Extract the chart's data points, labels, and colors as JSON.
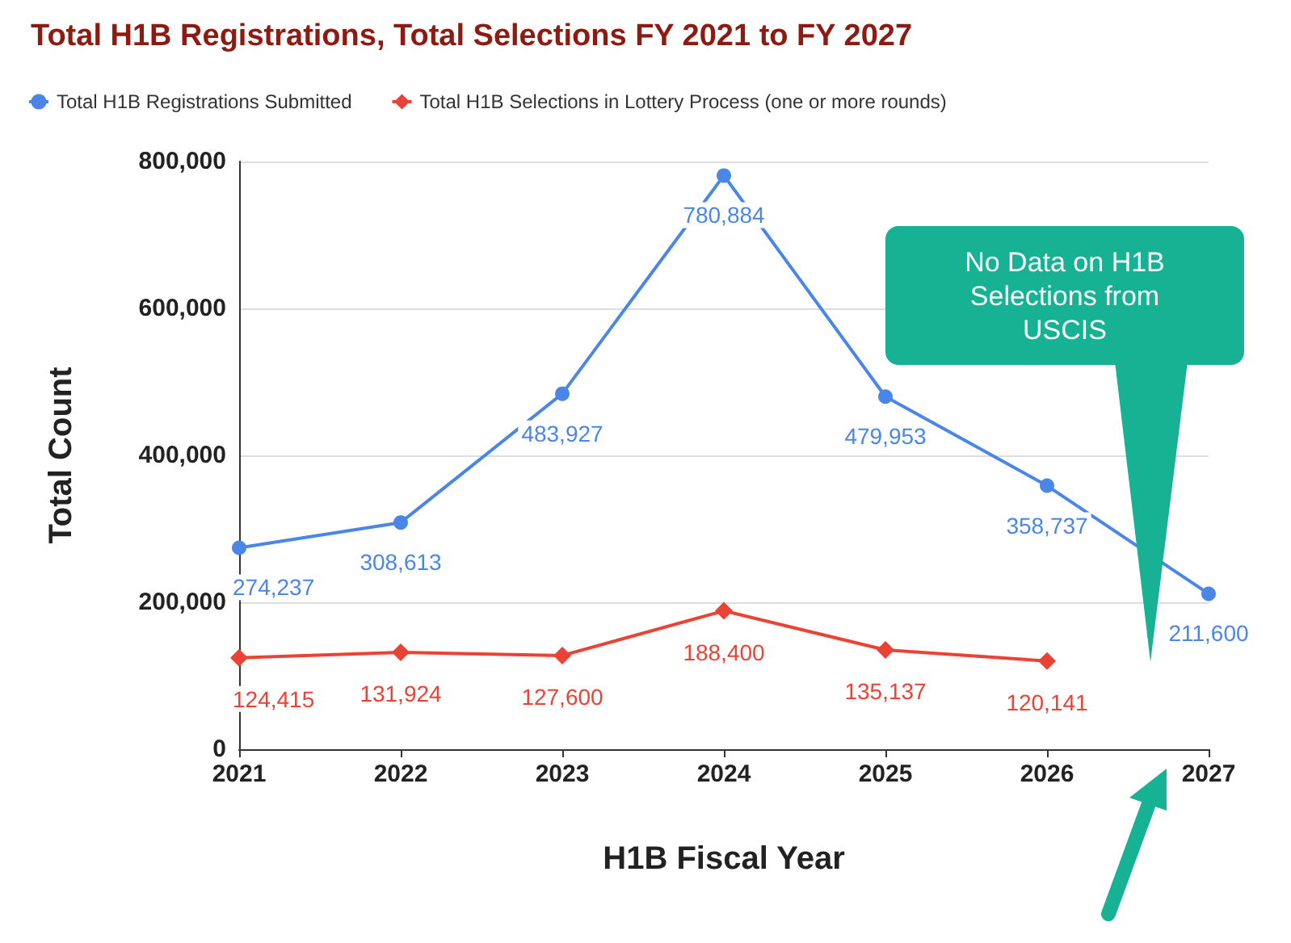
{
  "chart_data": {
    "type": "line",
    "title": "Total H1B Registrations, Total Selections FY 2021 to FY 2027",
    "xlabel": "H1B Fiscal Year",
    "ylabel": "Total Count",
    "categories": [
      "2021",
      "2022",
      "2023",
      "2024",
      "2025",
      "2026",
      "2027"
    ],
    "series": [
      {
        "name": "Total H1B Registrations Submitted",
        "color": "#4a86e8",
        "marker": "circle",
        "values": [
          274237,
          308613,
          483927,
          780884,
          479953,
          358737,
          211600
        ],
        "value_labels": [
          "274,237",
          "308,613",
          "483,927",
          "780,884",
          "479,953",
          "358,737",
          "211,600"
        ]
      },
      {
        "name": "Total H1B Selections in Lottery Process (one or more rounds)",
        "color": "#ea4335",
        "marker": "diamond",
        "values": [
          124415,
          131924,
          127600,
          188400,
          135137,
          120141,
          null
        ],
        "value_labels": [
          "124,415",
          "131,924",
          "127,600",
          "188,400",
          "135,137",
          "120,141",
          null
        ]
      }
    ],
    "ylim": [
      0,
      800000
    ],
    "yticks": [
      0,
      {
        "value": 200000,
        "label": "200,000"
      },
      {
        "value": 400000,
        "label": "400,000"
      },
      {
        "value": 600000,
        "label": "600,000"
      },
      {
        "value": 800000,
        "label": "800,000"
      }
    ],
    "grid": "y",
    "legend": "top left",
    "annotations": [
      "No Data on H1B Selections from USCIS"
    ]
  }
}
